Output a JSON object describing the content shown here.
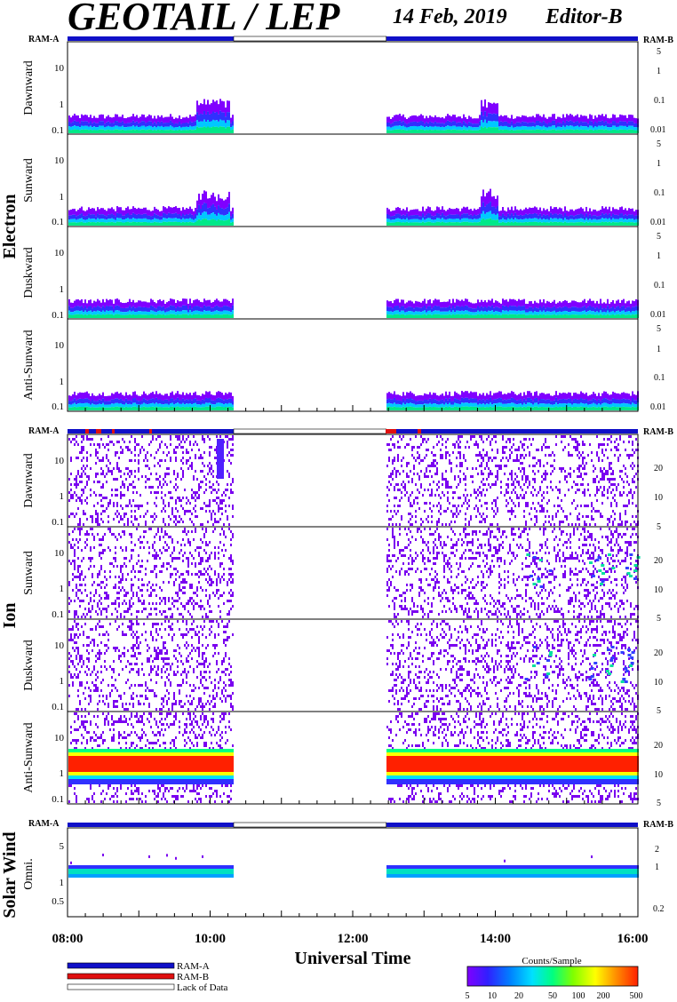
{
  "header": {
    "title": "GEOTAIL / LEP",
    "date": "14 Feb, 2019",
    "editor": "Editor-B"
  },
  "colors": {
    "ram_a": "#1010c8",
    "ram_b": "#e01010",
    "lack": "#ffffff"
  },
  "groups": {
    "electron": "Electron",
    "ion": "Ion",
    "solar_wind": "Solar Wind"
  },
  "ram_labels": {
    "a": "RAM-A",
    "b": "RAM-B"
  },
  "xaxis": {
    "label": "Universal Time",
    "ticks": [
      "08:00",
      "10:00",
      "12:00",
      "14:00",
      "16:00"
    ],
    "range_hours": [
      8,
      16
    ],
    "gap_hours": [
      10.33,
      12.47
    ]
  },
  "electron_panels": [
    {
      "name": "Dawnward",
      "left_ticks": [
        "10",
        "1",
        "0.1"
      ],
      "right_ticks": [
        "5",
        "1",
        "0.1",
        "0.01"
      ]
    },
    {
      "name": "Sunward",
      "left_ticks": [
        "10",
        "1",
        "0.1"
      ],
      "right_ticks": [
        "5",
        "1",
        "0.1",
        "0.01"
      ]
    },
    {
      "name": "Duskward",
      "left_ticks": [
        "10",
        "1",
        "0.1"
      ],
      "right_ticks": [
        "5",
        "1",
        "0.1",
        "0.01"
      ]
    },
    {
      "name": "Anti-Sunward",
      "left_ticks": [
        "10",
        "1",
        "0.1"
      ],
      "right_ticks": [
        "5",
        "1",
        "0.1",
        "0.01"
      ]
    }
  ],
  "ion_panels": [
    {
      "name": "Dawnward",
      "left_ticks": [
        "10",
        "1",
        "0.1"
      ],
      "right_ticks": [
        "20",
        "10",
        "5"
      ]
    },
    {
      "name": "Sunward",
      "left_ticks": [
        "10",
        "1",
        "0.1"
      ],
      "right_ticks": [
        "20",
        "10",
        "5"
      ]
    },
    {
      "name": "Duskward",
      "left_ticks": [
        "10",
        "1",
        "0.1"
      ],
      "right_ticks": [
        "20",
        "10",
        "5"
      ]
    },
    {
      "name": "Anti-Sunward",
      "left_ticks": [
        "10",
        "1",
        "0.1"
      ],
      "right_ticks": [
        "20",
        "10",
        "5"
      ]
    }
  ],
  "solar_wind_panel": {
    "name": "Omni.",
    "left_ticks": [
      "5",
      "1",
      "0.5"
    ],
    "right_ticks": [
      "2",
      "1",
      "0.2"
    ]
  },
  "legend": {
    "items": [
      {
        "label": "RAM-A"
      },
      {
        "label": "RAM-B"
      },
      {
        "label": "Lack of Data"
      }
    ]
  },
  "colorbar": {
    "title": "Counts/Sample",
    "ticks": [
      "5",
      "10",
      "20",
      "50",
      "100",
      "200",
      "500"
    ],
    "stops": [
      "#8000ff",
      "#3020ff",
      "#0080ff",
      "#00e0ff",
      "#00ff80",
      "#80ff00",
      "#ffff00",
      "#ff9000",
      "#ff2000"
    ]
  },
  "chart_data": {
    "type": "heatmap",
    "title": "GEOTAIL / LEP",
    "xlabel": "Universal Time",
    "x_ticks": [
      "08:00",
      "10:00",
      "12:00",
      "14:00",
      "16:00"
    ],
    "x_range_hours": [
      8,
      16
    ],
    "data_gap_hours": [
      10.33,
      12.47
    ],
    "colorbar_range": [
      5,
      500
    ],
    "colorbar_label": "Counts/Sample",
    "panels": [
      {
        "group": "Electron",
        "name": "Dawnward",
        "pattern": "low band near 0.1-0.3"
      },
      {
        "group": "Electron",
        "name": "Sunward",
        "pattern": "low band near 0.1-0.3"
      },
      {
        "group": "Electron",
        "name": "Duskward",
        "pattern": "low band near 0.1-0.3"
      },
      {
        "group": "Electron",
        "name": "Anti-Sunward",
        "pattern": "low band near 0.1-0.3"
      },
      {
        "group": "Ion",
        "name": "Dawnward",
        "pattern": "sparse scattered counts"
      },
      {
        "group": "Ion",
        "name": "Sunward",
        "pattern": "sparse scattered counts"
      },
      {
        "group": "Ion",
        "name": "Duskward",
        "pattern": "sparse scattered counts"
      },
      {
        "group": "Ion",
        "name": "Anti-Sunward",
        "pattern": "intense band near 2"
      },
      {
        "group": "Solar Wind",
        "name": "Omni.",
        "pattern": "band near 1.5-2"
      }
    ]
  }
}
